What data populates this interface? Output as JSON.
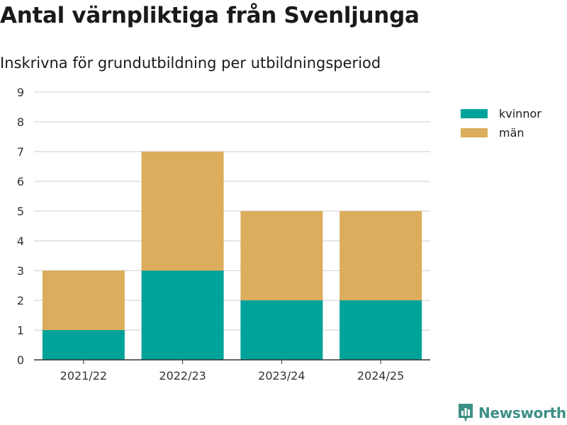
{
  "title": "Antal värnpliktiga från Svenljunga",
  "subtitle": "Inskrivna för grundutbildning per utbildningsperiod",
  "brand": "Newsworthy",
  "colors": {
    "kvinnor": "#00a39a",
    "man": "#dbad5c",
    "grid": "#dddddd",
    "axis": "#333333"
  },
  "legend": [
    {
      "label": "kvinnor",
      "color": "#00a39a"
    },
    {
      "label": "män",
      "color": "#dbad5c"
    }
  ],
  "chart_data": {
    "type": "bar",
    "stacked": true,
    "categories": [
      "2021/22",
      "2022/23",
      "2023/24",
      "2024/25"
    ],
    "series": [
      {
        "name": "kvinnor",
        "values": [
          1,
          3,
          2,
          2
        ],
        "color": "#00a39a"
      },
      {
        "name": "män",
        "values": [
          2,
          4,
          3,
          3
        ],
        "color": "#dbad5c"
      }
    ],
    "ylim": [
      0,
      9
    ],
    "yticks": [
      0,
      1,
      2,
      3,
      4,
      5,
      6,
      7,
      8,
      9
    ],
    "xlabel": "",
    "ylabel": "",
    "grid": true,
    "legend_position": "top-right"
  }
}
